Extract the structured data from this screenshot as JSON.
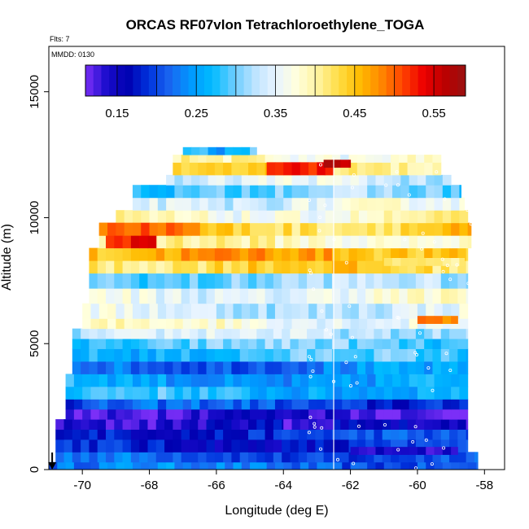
{
  "chart_data": {
    "type": "heatmap",
    "title": "ORCAS RF07vlon Tetrachloroethylene_TOGA",
    "flts_note": "Flts: 7",
    "mmdd_note": "MMDD: 0130",
    "xlabel": "Longitude (deg E)",
    "ylabel": "Altitude (m)",
    "xlim": [
      -71.0,
      -57.4
    ],
    "ylim": [
      0,
      16800
    ],
    "x_ticks": [
      {
        "value": -70,
        "label": "-70"
      },
      {
        "value": -68,
        "label": "-68"
      },
      {
        "value": -66,
        "label": "-66"
      },
      {
        "value": -64,
        "label": "-64"
      },
      {
        "value": -62,
        "label": "-62"
      },
      {
        "value": -60,
        "label": "-60"
      },
      {
        "value": -58,
        "label": "-58"
      }
    ],
    "y_ticks": [
      {
        "value": 0,
        "label": "0"
      },
      {
        "value": 5000,
        "label": "5000"
      },
      {
        "value": 10000,
        "label": "10000"
      },
      {
        "value": 15000,
        "label": "15000"
      }
    ],
    "colorbar": {
      "range": [
        0.11,
        0.59
      ],
      "ticks": [
        {
          "value": 0.15,
          "label": "0.15"
        },
        {
          "value": 0.25,
          "label": "0.25"
        },
        {
          "value": 0.35,
          "label": "0.35"
        },
        {
          "value": 0.45,
          "label": "0.45"
        },
        {
          "value": 0.55,
          "label": "0.55"
        }
      ],
      "colors": [
        "#7b2ff7",
        "#1a0ccc",
        "#0000b0",
        "#0033dd",
        "#1a66f0",
        "#0099ff",
        "#00bbff",
        "#66ccff",
        "#bbe3ff",
        "#e8f4ff",
        "#ffffdd",
        "#fff3a0",
        "#ffdd44",
        "#ffbb00",
        "#ff8800",
        "#ff4400",
        "#ee0000",
        "#bb0000",
        "#991111"
      ]
    },
    "vertical_line_lon": -62.5,
    "arrow_lon": -70.9,
    "altitude_bands": [
      {
        "alt": [
          0,
          300
        ],
        "lon": [
          -71.0,
          -58.2
        ],
        "value": 0.22
      },
      {
        "alt": [
          300,
          700
        ],
        "lon": [
          -70.8,
          -58.2
        ],
        "value": 0.21
      },
      {
        "alt": [
          700,
          1200
        ],
        "lon": [
          -70.8,
          -58.5
        ],
        "value": 0.18
      },
      {
        "alt": [
          1200,
          1600
        ],
        "lon": [
          -70.8,
          -58.5
        ],
        "value": 0.19
      },
      {
        "alt": [
          1600,
          2000
        ],
        "lon": [
          -70.8,
          -58.5
        ],
        "value": 0.15
      },
      {
        "alt": [
          2000,
          2400
        ],
        "lon": [
          -70.5,
          -58.5
        ],
        "value": 0.13
      },
      {
        "alt": [
          2400,
          2800
        ],
        "lon": [
          -70.5,
          -58.5
        ],
        "value": 0.2
      },
      {
        "alt": [
          2800,
          3300
        ],
        "lon": [
          -70.5,
          -58.5
        ],
        "value": 0.27
      },
      {
        "alt": [
          3300,
          3800
        ],
        "lon": [
          -70.5,
          -58.5
        ],
        "value": 0.25
      },
      {
        "alt": [
          3800,
          4300
        ],
        "lon": [
          -70.3,
          -58.5
        ],
        "value": 0.23
      },
      {
        "alt": [
          4300,
          4800
        ],
        "lon": [
          -70.3,
          -58.5
        ],
        "value": 0.28
      },
      {
        "alt": [
          4800,
          5200
        ],
        "lon": [
          -70.3,
          -58.5
        ],
        "value": 0.29
      },
      {
        "alt": [
          5200,
          5600
        ],
        "lon": [
          -70.3,
          -58.5
        ],
        "value": 0.33
      },
      {
        "alt": [
          5600,
          6000
        ],
        "lon": [
          -70.0,
          -58.5
        ],
        "value": 0.37
      },
      {
        "alt": [
          6000,
          6600
        ],
        "lon": [
          -70.0,
          -58.5
        ],
        "value": 0.34
      },
      {
        "alt": [
          6600,
          7200
        ],
        "lon": [
          -69.8,
          -58.5
        ],
        "value": 0.36
      },
      {
        "alt": [
          7200,
          7800
        ],
        "lon": [
          -69.8,
          -58.5
        ],
        "value": 0.31
      },
      {
        "alt": [
          7800,
          8300
        ],
        "lon": [
          -69.8,
          -58.5
        ],
        "value": 0.43
      },
      {
        "alt": [
          8300,
          8800
        ],
        "lon": [
          -69.8,
          -58.5
        ],
        "value": 0.46
      },
      {
        "alt": [
          8800,
          9300
        ],
        "lon": [
          -69.5,
          -58.4
        ],
        "value": 0.39
      },
      {
        "alt": [
          9300,
          9800
        ],
        "lon": [
          -69.5,
          -58.4
        ],
        "value": 0.44
      },
      {
        "alt": [
          9800,
          10300
        ],
        "lon": [
          -69.0,
          -58.5
        ],
        "value": 0.38
      },
      {
        "alt": [
          10300,
          10800
        ],
        "lon": [
          -68.5,
          -58.6
        ],
        "value": 0.35
      },
      {
        "alt": [
          10800,
          11300
        ],
        "lon": [
          -68.5,
          -58.7
        ],
        "value": 0.3
      },
      {
        "alt": [
          11300,
          11700
        ],
        "lon": [
          -67.5,
          -59.0
        ],
        "value": 0.34
      },
      {
        "alt": [
          11700,
          12200
        ],
        "lon": [
          -67.3,
          -59.3
        ],
        "value": 0.42
      },
      {
        "alt": [
          12200,
          12500
        ],
        "lon": [
          -67.3,
          -59.3
        ],
        "value": 0.38
      },
      {
        "alt": [
          12500,
          12800
        ],
        "lon": [
          -67.0,
          -64.8
        ],
        "value": 0.27
      }
    ],
    "hot_spots": [
      {
        "alt": [
          8800,
          9300
        ],
        "lon": [
          -69.3,
          -67.8
        ],
        "value": 0.53
      },
      {
        "alt": [
          9300,
          9800
        ],
        "lon": [
          -69.5,
          -66.5
        ],
        "value": 0.5
      },
      {
        "alt": [
          11700,
          12200
        ],
        "lon": [
          -64.5,
          -62.5
        ],
        "value": 0.53
      },
      {
        "alt": [
          12000,
          12300
        ],
        "lon": [
          -62.8,
          -62.0
        ],
        "value": 0.56
      },
      {
        "alt": [
          5800,
          6100
        ],
        "lon": [
          -60.0,
          -58.8
        ],
        "value": 0.49
      },
      {
        "alt": [
          1600,
          2000
        ],
        "lon": [
          -64.0,
          -62.5
        ],
        "value": 0.12
      },
      {
        "alt": [
          600,
          900
        ],
        "lon": [
          -62.0,
          -58.8
        ],
        "value": 0.14
      },
      {
        "alt": [
          8100,
          8400
        ],
        "lon": [
          -61.0,
          -58.6
        ],
        "value": 0.41
      }
    ]
  }
}
